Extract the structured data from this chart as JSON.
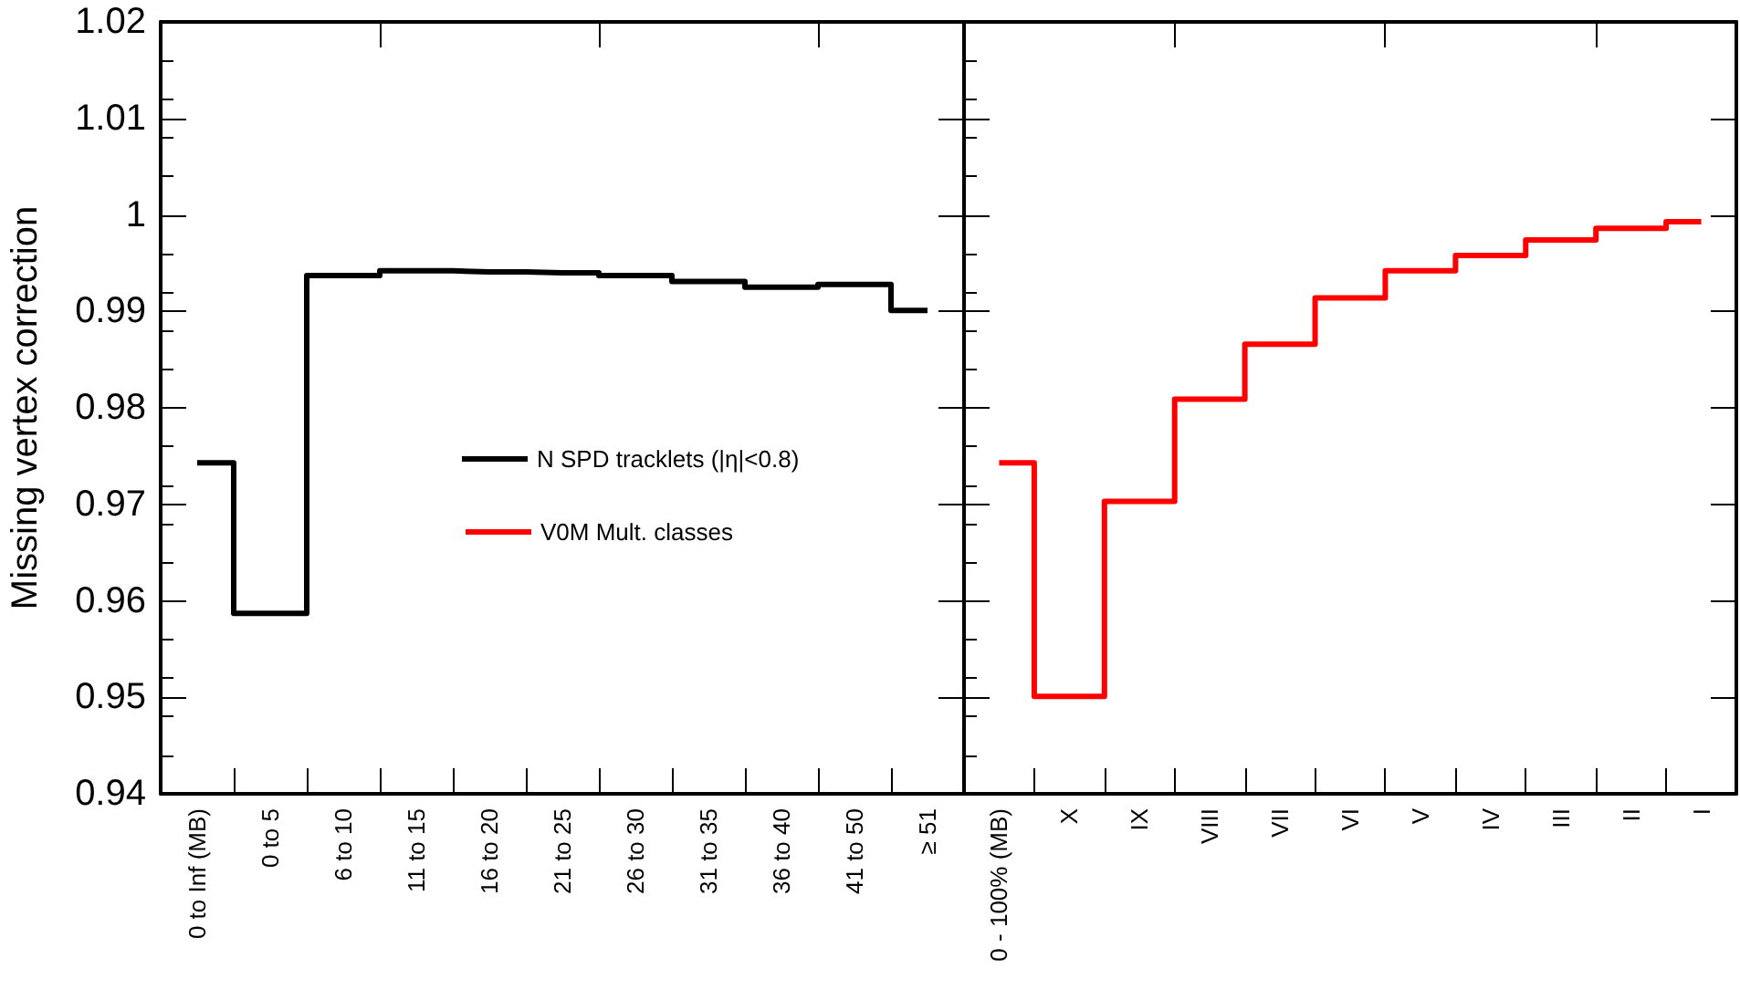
{
  "chart_data": [
    {
      "type": "step",
      "ylabel": "Missing vertex correction",
      "categories": [
        "0 to Inf (MB)",
        "0 to 5",
        "6 to 10",
        "11 to 15",
        "16 to 20",
        "21 to 25",
        "26 to 30",
        "31 to 35",
        "36 to 40",
        "41 to 50",
        "≥ 51"
      ],
      "series": [
        {
          "name": "N SPD tracklets (|η|<0.8)",
          "color": "#000000",
          "values": [
            0.9743,
            0.9587,
            0.9937,
            0.9942,
            0.9941,
            0.994,
            0.9937,
            0.9931,
            0.9925,
            0.9928,
            0.9901
          ]
        }
      ],
      "ylim": [
        0.94,
        1.02
      ],
      "yticks": [
        0.94,
        0.95,
        0.96,
        0.97,
        0.98,
        0.99,
        1,
        1.01,
        1.02
      ],
      "legend": "center",
      "marker": "none"
    },
    {
      "type": "step",
      "categories": [
        "0 - 100% (MB)",
        "X",
        "IX",
        "VIII",
        "VII",
        "VI",
        "V",
        "IV",
        "III",
        "II",
        "I"
      ],
      "series": [
        {
          "name": "V0M Mult. classes",
          "color": "#ff0000",
          "values": [
            0.9743,
            0.9501,
            0.9703,
            0.9809,
            0.9866,
            0.9914,
            0.9942,
            0.9958,
            0.9974,
            0.9986,
            0.9993
          ]
        }
      ],
      "ylim": [
        0.94,
        1.02
      ],
      "yticks": [
        0.94,
        0.95,
        0.96,
        0.97,
        0.98,
        0.99,
        1,
        1.01,
        1.02
      ],
      "tick_labels": "x",
      "legend": "left",
      "marker": "none"
    }
  ]
}
